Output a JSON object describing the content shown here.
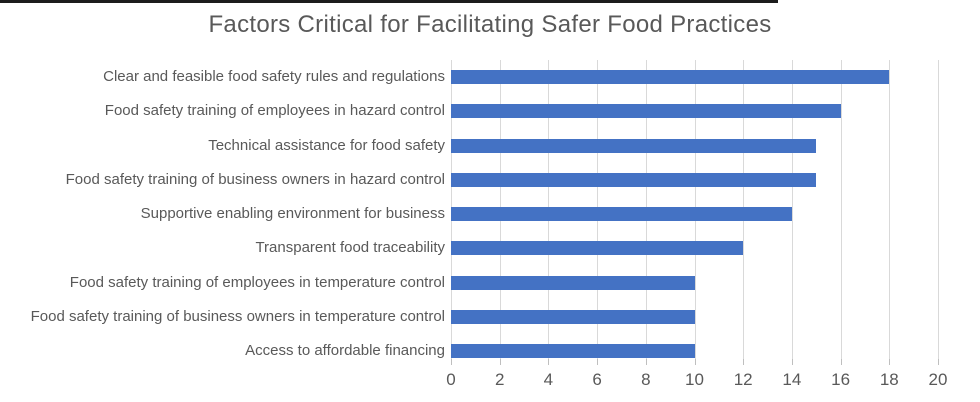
{
  "chart_data": {
    "type": "bar",
    "orientation": "horizontal",
    "title": "Factors Critical for Facilitating Safer Food Practices",
    "categories": [
      "Clear and feasible food safety rules and regulations",
      "Food safety training of employees in hazard control",
      "Technical assistance for food safety",
      "Food safety training of business owners in hazard control",
      "Supportive enabling environment for business",
      "Transparent food traceability",
      "Food safety training of employees in temperature control",
      "Food safety training of business owners in temperature control",
      "Access to affordable financing"
    ],
    "values": [
      18,
      16,
      15,
      15,
      14,
      12,
      10,
      10,
      10
    ],
    "xlabel": "",
    "ylabel": "",
    "xlim": [
      0,
      20
    ],
    "xticks": [
      "0",
      "2",
      "4",
      "6",
      "8",
      "10",
      "12",
      "14",
      "16",
      "18",
      "20"
    ],
    "grid": "vertical-only",
    "legend": "none"
  },
  "colors": {
    "bar": "#4472C4",
    "title_text": "#595959",
    "label_text": "#595959",
    "tick_text": "#595959",
    "gridline": "#D9D9D9",
    "tick_mark": "#BFBFBF",
    "top_line": "#1C1C1C",
    "background": "#FFFFFF"
  }
}
